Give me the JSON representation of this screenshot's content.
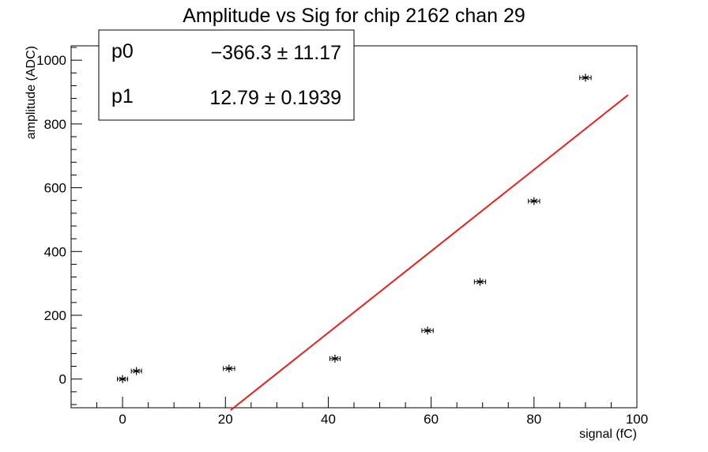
{
  "chart_data": {
    "type": "scatter",
    "title": "Amplitude vs Sig for chip 2162 chan 29",
    "xlabel": "signal (fC)",
    "ylabel": "amplitude (ADC)",
    "xlim": [
      -10,
      100
    ],
    "ylim": [
      -90,
      1045
    ],
    "x_ticks": [
      0,
      20,
      40,
      60,
      80,
      100
    ],
    "y_ticks": [
      0,
      200,
      400,
      600,
      800,
      1000
    ],
    "points": [
      {
        "x": 0,
        "y": 0,
        "xerr": 1.0
      },
      {
        "x": 2.7,
        "y": 25,
        "xerr": 1.0
      },
      {
        "x": 20.7,
        "y": 33,
        "xerr": 1.1
      },
      {
        "x": 41.3,
        "y": 64,
        "xerr": 1.0
      },
      {
        "x": 59.3,
        "y": 152,
        "xerr": 1.1
      },
      {
        "x": 69.5,
        "y": 305,
        "xerr": 1.1
      },
      {
        "x": 80.0,
        "y": 558,
        "xerr": 1.1
      },
      {
        "x": 90.0,
        "y": 945,
        "xerr": 1.1
      }
    ],
    "fit": {
      "p0": -366.3,
      "p1": 12.79,
      "x_range": [
        21.0,
        98.3
      ],
      "color": "#e8201c"
    },
    "stats": [
      {
        "name": "p0",
        "value": "−366.3 ± 11.17"
      },
      {
        "name": "p1",
        "value": "12.79 ± 0.1939"
      }
    ],
    "grid": false
  }
}
